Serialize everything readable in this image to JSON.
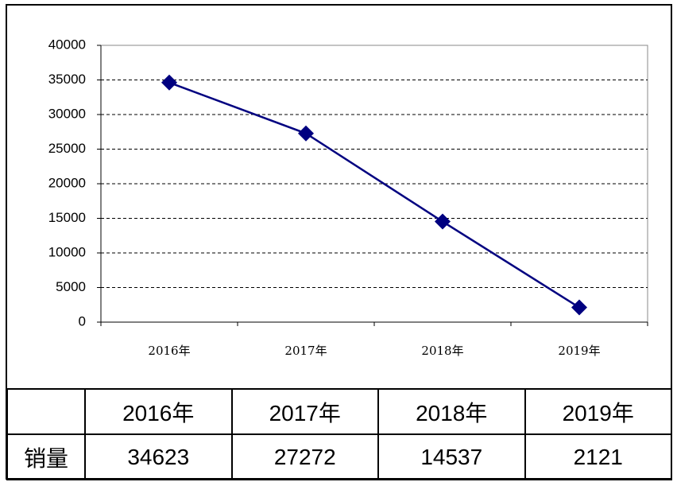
{
  "chart_data": {
    "type": "line",
    "categories": [
      "2016年",
      "2017年",
      "2018年",
      "2019年"
    ],
    "series": [
      {
        "color": "#000080",
        "values": [
          34623,
          27272,
          14537,
          2121
        ]
      }
    ],
    "ylim": [
      0,
      40000
    ],
    "yticks": [
      0,
      5000,
      10000,
      15000,
      20000,
      25000,
      30000,
      35000,
      40000
    ],
    "grid": true
  },
  "table": {
    "header": [
      "2016年",
      "2017年",
      "2018年",
      "2019年"
    ],
    "rows": [
      [
        "销量",
        "34623",
        "27272",
        "14537",
        "2121"
      ]
    ]
  }
}
